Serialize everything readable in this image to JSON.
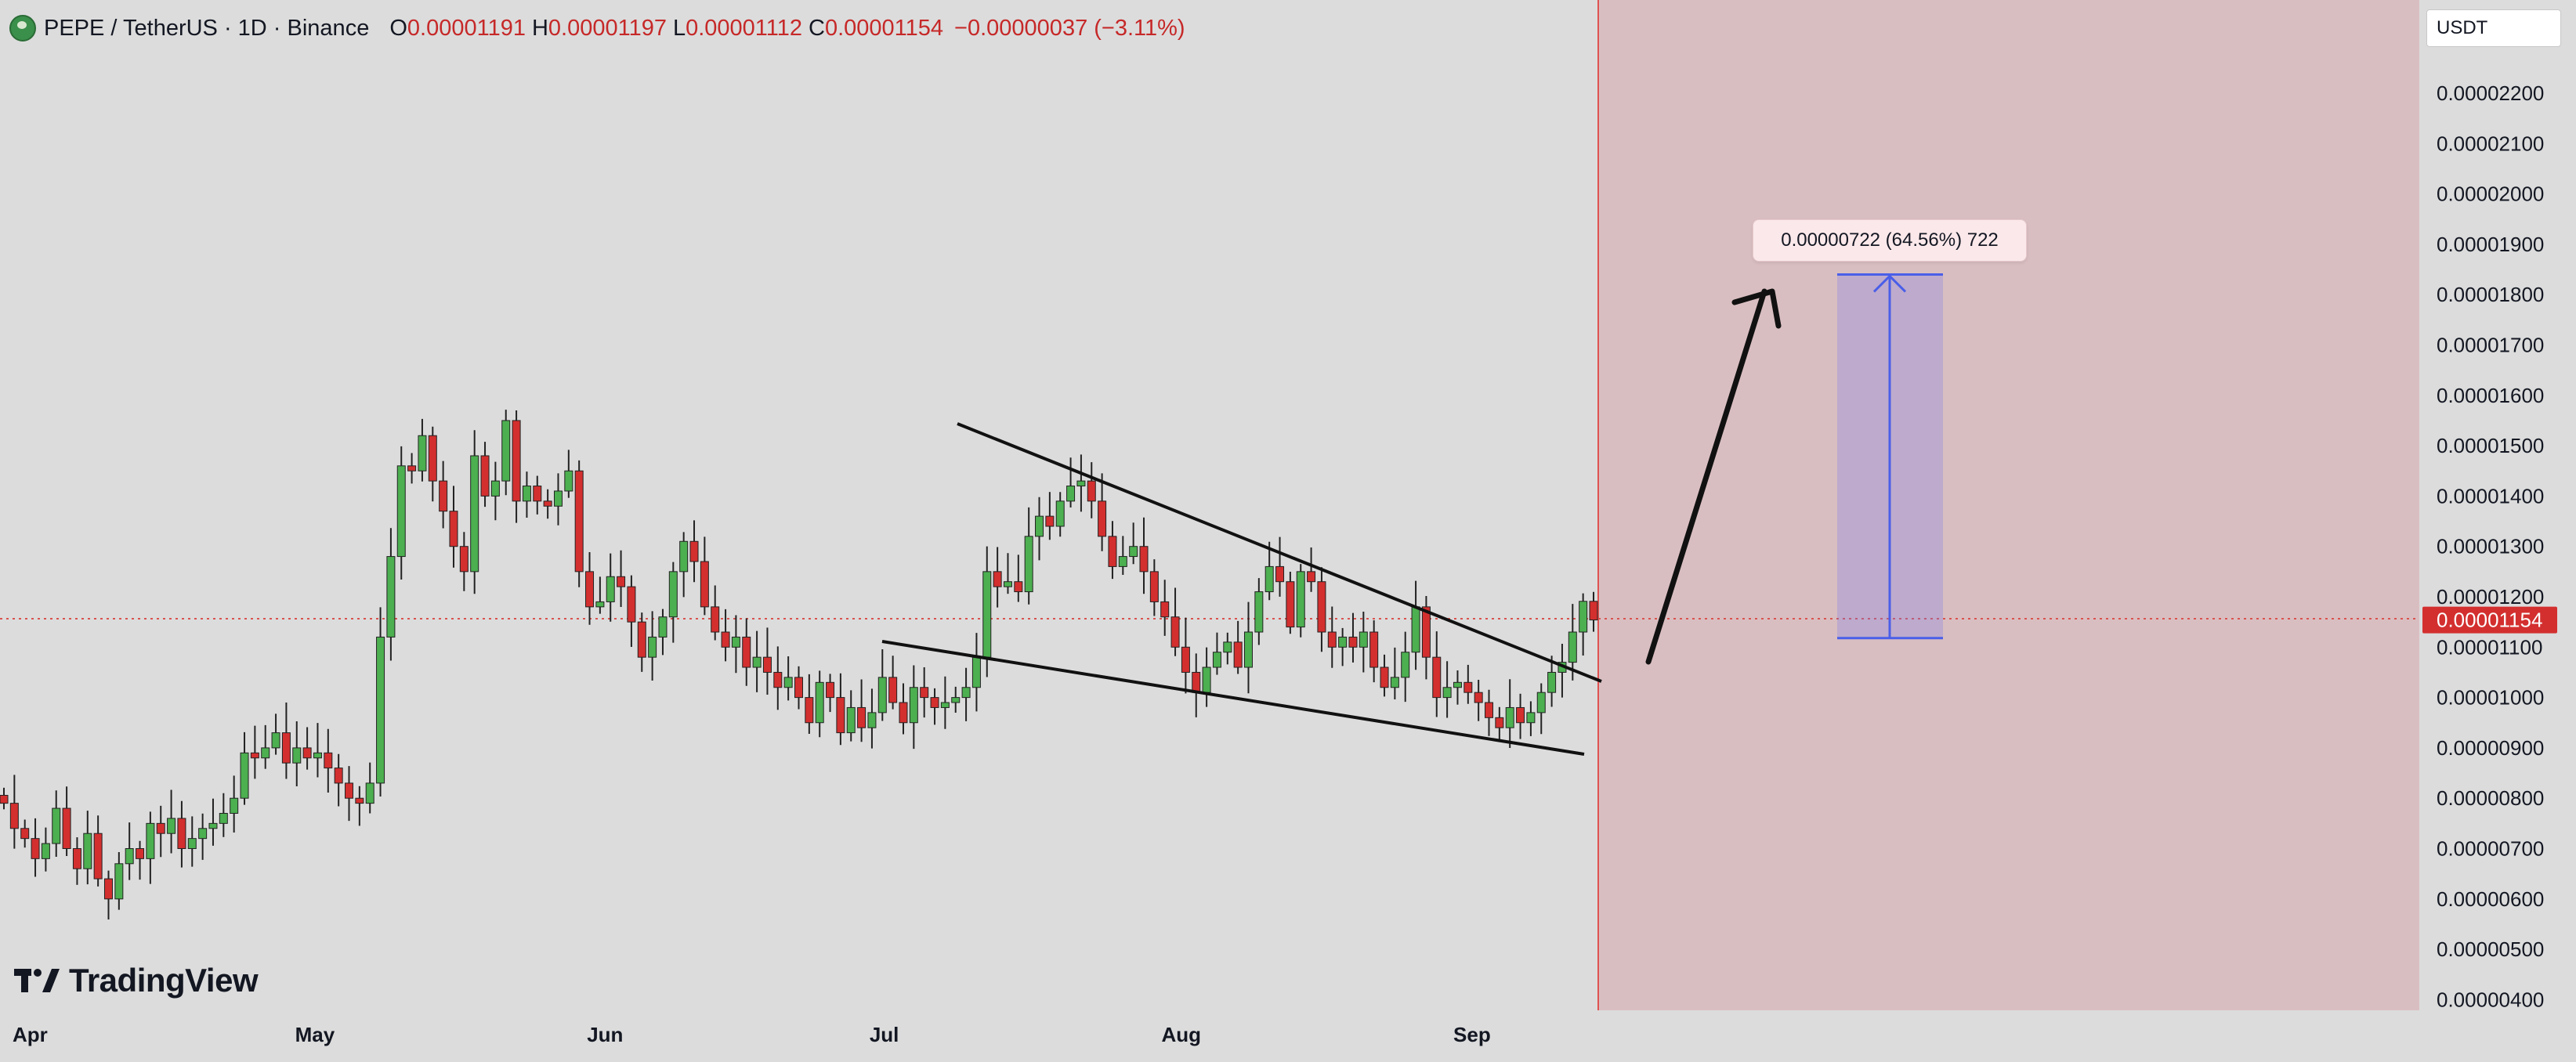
{
  "header": {
    "title": "PEPE / TetherUS · 1D · Binance",
    "open_label": "O",
    "open_value": "0.00001191",
    "high_label": "H",
    "high_value": "0.00001197",
    "low_label": "L",
    "low_value": "0.00001112",
    "close_label": "C",
    "close_value": "0.00001154",
    "change": "−0.00000037 (−3.11%)"
  },
  "currency": "USDT",
  "brand": "TradingView",
  "last_price_label": "0.00001154",
  "measure_label": "0.00000722 (64.56%) 722",
  "colors": {
    "up": "#4caf50",
    "down": "#d32f2f",
    "background": "#dcdcdc",
    "future_zone": "#d9bec1",
    "measure": "#4a5ee8",
    "price_tag": "#d32f2f"
  },
  "chart_data": {
    "type": "candlestick",
    "title": "PEPE / TetherUS · 1D · Binance",
    "y_axis": {
      "ticks": [
        "0.00002200",
        "0.00002100",
        "0.00002000",
        "0.00001900",
        "0.00001800",
        "0.00001700",
        "0.00001600",
        "0.00001500",
        "0.00001400",
        "0.00001300",
        "0.00001200",
        "0.00001100",
        "0.00001000",
        "0.00000900",
        "0.00000800",
        "0.00000700",
        "0.00000600",
        "0.00000500",
        "0.00000400"
      ],
      "range": [
        3.6e-06,
        2.34e-05
      ]
    },
    "x_axis": {
      "ticks": [
        {
          "label": "Apr",
          "date": "2024-04-01"
        },
        {
          "label": "May",
          "date": "2024-05-01"
        },
        {
          "label": "Jun",
          "date": "2024-06-01"
        },
        {
          "label": "Jul",
          "date": "2024-07-01"
        },
        {
          "label": "Aug",
          "date": "2024-08-01"
        },
        {
          "label": "Sep",
          "date": "2024-09-01"
        }
      ]
    },
    "last_close": 1.154e-05,
    "measure": {
      "from": 1.118e-05,
      "to": 1.84e-05,
      "label": "0.00000722 (64.56%) 722"
    },
    "candles_close": [
      7.9,
      7.4,
      7.2,
      6.8,
      7.1,
      7.8,
      7.0,
      6.6,
      7.3,
      6.4,
      6.0,
      6.7,
      7.0,
      6.8,
      7.5,
      7.3,
      7.6,
      7.0,
      7.2,
      7.4,
      7.5,
      7.7,
      8.0,
      8.9,
      8.8,
      9.0,
      9.3,
      8.7,
      9.0,
      8.8,
      8.9,
      8.6,
      8.3,
      8.0,
      7.9,
      8.3,
      11.2,
      12.8,
      14.6,
      14.5,
      15.2,
      14.3,
      13.7,
      13.0,
      12.5,
      14.8,
      14.0,
      14.3,
      15.5,
      13.9,
      14.2,
      13.9,
      13.8,
      14.1,
      14.5,
      12.5,
      11.8,
      11.9,
      12.4,
      12.2,
      11.5,
      10.8,
      11.2,
      11.6,
      12.5,
      13.1,
      12.7,
      11.8,
      11.3,
      11.0,
      11.2,
      10.6,
      10.8,
      10.5,
      10.2,
      10.4,
      10.0,
      9.5,
      10.3,
      10.0,
      9.3,
      9.8,
      9.4,
      9.7,
      10.4,
      9.9,
      9.5,
      10.2,
      10.0,
      9.8,
      9.9,
      10.0,
      10.2,
      10.8,
      12.5,
      12.2,
      12.3,
      12.1,
      13.2,
      13.6,
      13.4,
      13.9,
      14.2,
      14.3,
      13.9,
      13.2,
      12.6,
      12.8,
      13.0,
      12.5,
      11.9,
      11.6,
      11.0,
      10.5,
      10.1,
      10.6,
      10.9,
      11.1,
      10.6,
      11.3,
      12.1,
      12.6,
      12.3,
      11.4,
      12.5,
      12.3,
      11.3,
      11.0,
      11.2,
      11.0,
      11.3,
      10.6,
      10.2,
      10.4,
      10.9,
      11.8,
      10.8,
      10.0,
      10.2,
      10.3,
      10.1,
      9.9,
      9.6,
      9.4,
      9.8,
      9.5,
      9.7,
      10.1,
      10.5,
      10.7,
      11.3,
      11.91,
      11.54
    ]
  }
}
